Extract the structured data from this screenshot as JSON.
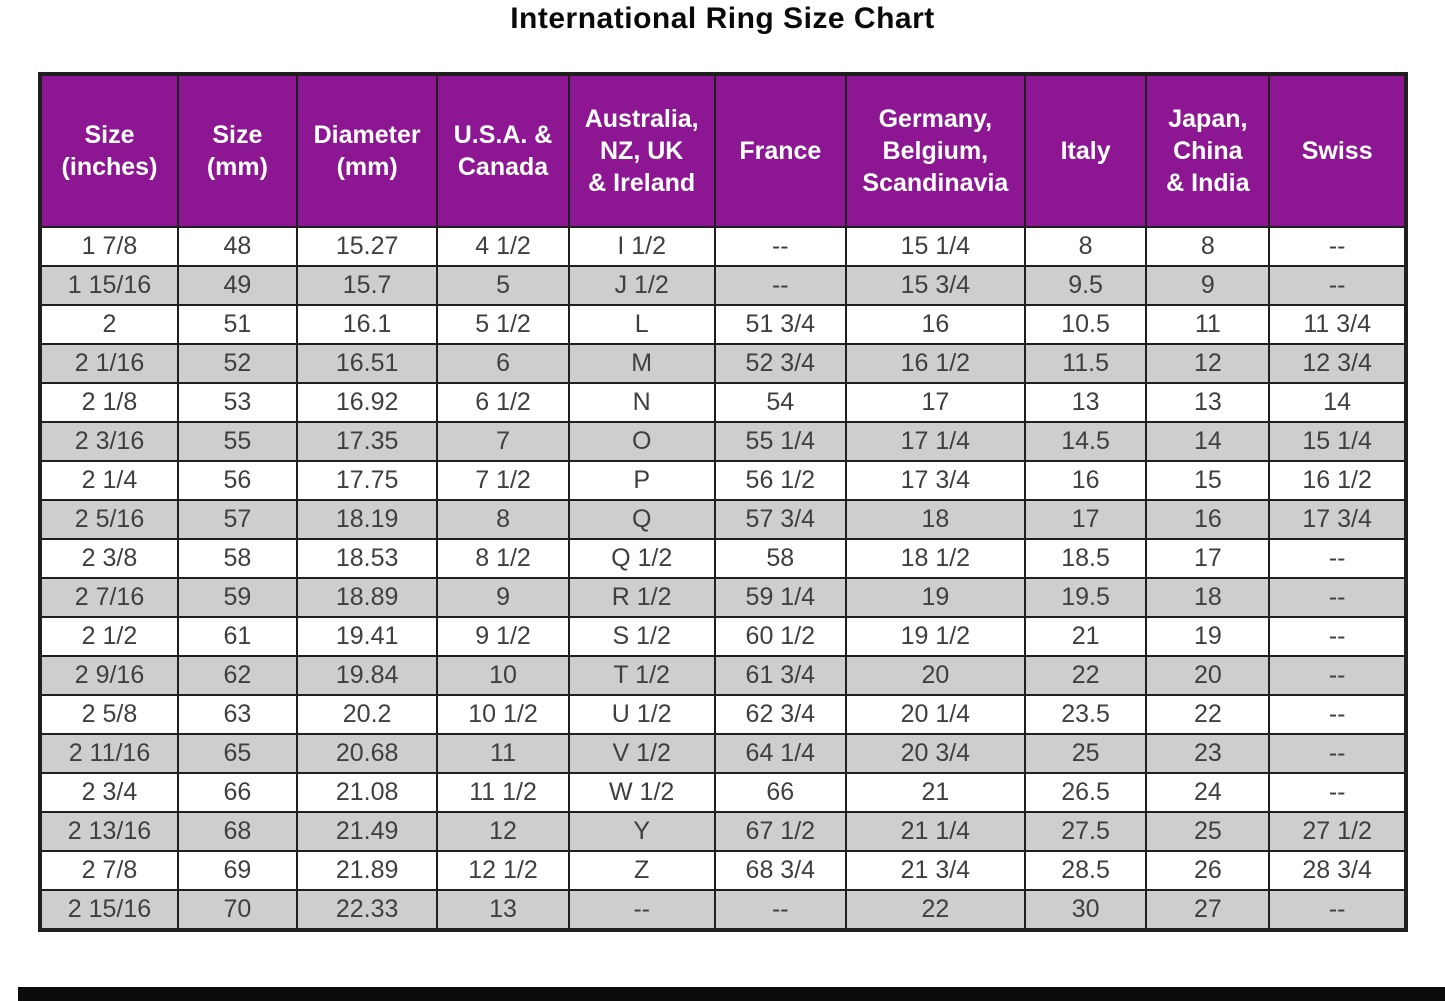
{
  "title": "International Ring Size Chart",
  "colors": {
    "header_bg": "#8d1692",
    "header_text": "#ffffff",
    "row_bg": "#ffffff",
    "row_alt_bg": "#cecece",
    "cell_text": "#3f3f3f",
    "border": "#1f1f1f"
  },
  "chart_data": {
    "type": "table",
    "title": "International Ring Size Chart",
    "columns": [
      "Size\n(inches)",
      "Size\n(mm)",
      "Diameter\n(mm)",
      "U.S.A. &\nCanada",
      "Australia,\nNZ, UK\n& Ireland",
      "France",
      "Germany,\nBelgium,\nScandinavia",
      "Italy",
      "Japan,\nChina\n& India",
      "Swiss"
    ],
    "rows": [
      [
        "1 7/8",
        "48",
        "15.27",
        "4 1/2",
        "I 1/2",
        "--",
        "15 1/4",
        "8",
        "8",
        "--"
      ],
      [
        "1 15/16",
        "49",
        "15.7",
        "5",
        "J 1/2",
        "--",
        "15 3/4",
        "9.5",
        "9",
        "--"
      ],
      [
        "2",
        "51",
        "16.1",
        "5 1/2",
        "L",
        "51 3/4",
        "16",
        "10.5",
        "11",
        "11 3/4"
      ],
      [
        "2 1/16",
        "52",
        "16.51",
        "6",
        "M",
        "52 3/4",
        "16 1/2",
        "11.5",
        "12",
        "12 3/4"
      ],
      [
        "2 1/8",
        "53",
        "16.92",
        "6 1/2",
        "N",
        "54",
        "17",
        "13",
        "13",
        "14"
      ],
      [
        "2 3/16",
        "55",
        "17.35",
        "7",
        "O",
        "55 1/4",
        "17 1/4",
        "14.5",
        "14",
        "15 1/4"
      ],
      [
        "2 1/4",
        "56",
        "17.75",
        "7 1/2",
        "P",
        "56 1/2",
        "17 3/4",
        "16",
        "15",
        "16 1/2"
      ],
      [
        "2 5/16",
        "57",
        "18.19",
        "8",
        "Q",
        "57 3/4",
        "18",
        "17",
        "16",
        "17 3/4"
      ],
      [
        "2 3/8",
        "58",
        "18.53",
        "8 1/2",
        "Q 1/2",
        "58",
        "18 1/2",
        "18.5",
        "17",
        "--"
      ],
      [
        "2 7/16",
        "59",
        "18.89",
        "9",
        "R 1/2",
        "59 1/4",
        "19",
        "19.5",
        "18",
        "--"
      ],
      [
        "2 1/2",
        "61",
        "19.41",
        "9 1/2",
        "S 1/2",
        "60 1/2",
        "19 1/2",
        "21",
        "19",
        "--"
      ],
      [
        "2 9/16",
        "62",
        "19.84",
        "10",
        "T 1/2",
        "61 3/4",
        "20",
        "22",
        "20",
        "--"
      ],
      [
        "2 5/8",
        "63",
        "20.2",
        "10 1/2",
        "U 1/2",
        "62 3/4",
        "20 1/4",
        "23.5",
        "22",
        "--"
      ],
      [
        "2 11/16",
        "65",
        "20.68",
        "11",
        "V 1/2",
        "64 1/4",
        "20 3/4",
        "25",
        "23",
        "--"
      ],
      [
        "2 3/4",
        "66",
        "21.08",
        "11 1/2",
        "W 1/2",
        "66",
        "21",
        "26.5",
        "24",
        "--"
      ],
      [
        "2 13/16",
        "68",
        "21.49",
        "12",
        "Y",
        "67 1/2",
        "21 1/4",
        "27.5",
        "25",
        "27 1/2"
      ],
      [
        "2 7/8",
        "69",
        "21.89",
        "12 1/2",
        "Z",
        "68 3/4",
        "21 3/4",
        "28.5",
        "26",
        "28 3/4"
      ],
      [
        "2 15/16",
        "70",
        "22.33",
        "13",
        "--",
        "--",
        "22",
        "30",
        "27",
        "--"
      ]
    ]
  }
}
